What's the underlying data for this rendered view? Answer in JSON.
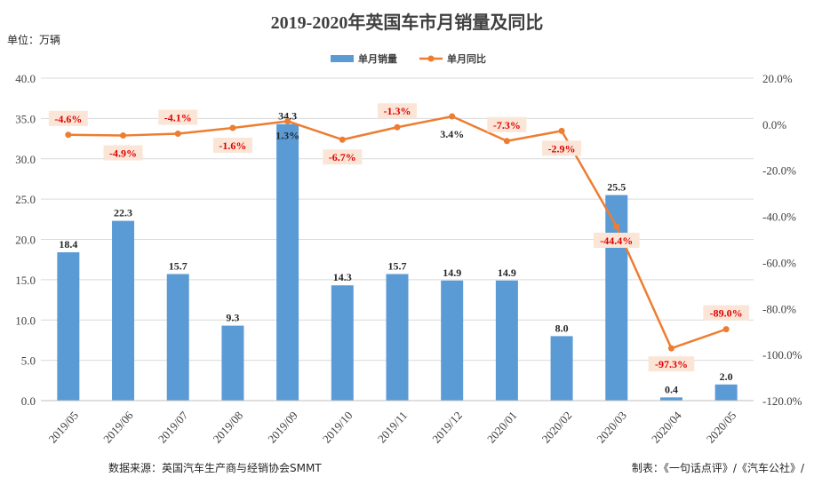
{
  "chart_data": {
    "type": "bar+line",
    "title": "2019-2020年英国车市月销量及同比",
    "unit_label": "单位：万辆",
    "categories": [
      "2019/05",
      "2019/06",
      "2019/07",
      "2019/08",
      "2019/09",
      "2019/10",
      "2019/11",
      "2019/12",
      "2020/01",
      "2020/02",
      "2020/03",
      "2020/04",
      "2020/05"
    ],
    "series": [
      {
        "name": "单月销量",
        "type": "bar",
        "axis": "left",
        "color": "#5B9BD5",
        "values": [
          18.4,
          22.3,
          15.7,
          9.3,
          34.3,
          14.3,
          15.7,
          14.9,
          14.9,
          8.0,
          25.5,
          0.4,
          2.0
        ],
        "labels": [
          "18.4",
          "22.3",
          "15.7",
          "9.3",
          "34.3",
          "14.3",
          "15.7",
          "14.9",
          "14.9",
          "8.0",
          "25.5",
          "0.4",
          "2.0"
        ]
      },
      {
        "name": "单月同比",
        "type": "line",
        "axis": "right",
        "color": "#ED7D31",
        "values": [
          -4.6,
          -4.9,
          -4.1,
          -1.6,
          1.3,
          -6.7,
          -1.3,
          3.4,
          -7.3,
          -2.9,
          -44.4,
          -97.3,
          -89.0
        ],
        "labels": [
          "-4.6%",
          "-4.9%",
          "-4.1%",
          "-1.6%",
          "1.3%",
          "-6.7%",
          "-1.3%",
          "3.4%",
          "-7.3%",
          "-2.9%",
          "-44.4%",
          "-97.3%",
          "-89.0%"
        ]
      }
    ],
    "y_left": {
      "min": 0,
      "max": 40,
      "ticks": [
        "0.0",
        "5.0",
        "10.0",
        "15.0",
        "20.0",
        "25.0",
        "30.0",
        "35.0",
        "40.0"
      ]
    },
    "y_right": {
      "min": -120,
      "max": 20,
      "ticks": [
        "-120.0%",
        "-100.0%",
        "-80.0%",
        "-60.0%",
        "-40.0%",
        "-20.0%",
        "0.0%",
        "20.0%"
      ]
    },
    "grid": true,
    "legend_position": "top-center",
    "source": "数据来源：英国汽车生产商与经销协会SMMT",
    "credit": "制表：《一句话点评》/《汽车公社》/"
  }
}
